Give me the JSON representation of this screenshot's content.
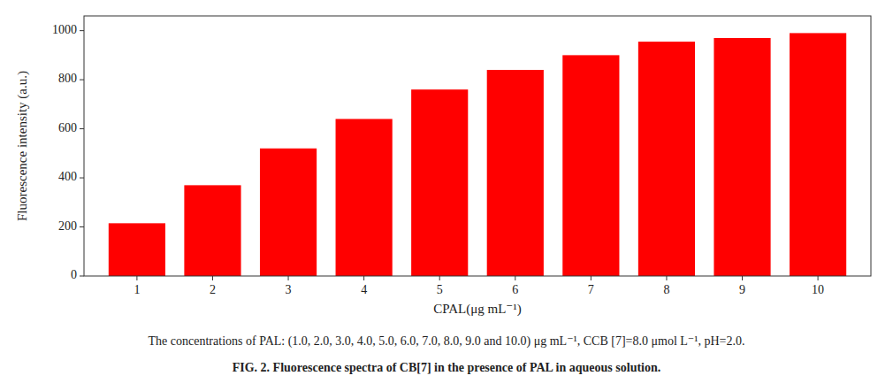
{
  "chart_data": {
    "type": "bar",
    "x": [
      1,
      2,
      3,
      4,
      5,
      6,
      7,
      8,
      9,
      10
    ],
    "values": [
      215,
      370,
      520,
      640,
      760,
      840,
      900,
      955,
      970,
      990
    ],
    "color": "#FF0000",
    "xlabel": "CPAL(μg mL⁻¹)",
    "ylabel": "Fluorescence intensity (a.u.)",
    "xlim": [
      0.3,
      10.7
    ],
    "xticks": [
      1,
      2,
      3,
      4,
      5,
      6,
      7,
      8,
      9,
      10
    ],
    "ylim": [
      0,
      1060
    ],
    "yticks": [
      0,
      200,
      400,
      600,
      800,
      1000
    ],
    "grid": false,
    "annotations": [
      "The concentrations of PAL: (1.0, 2.0, 3.0, 4.0, 5.0, 6.0, 7.0, 8.0, 9.0 and 10.0) μg mL⁻¹, CCB [7]=8.0 μmol L⁻¹, pH=2.0.",
      "FIG. 2. Fluorescence spectra of CB[7] in the presence of PAL in aqueous solution."
    ]
  }
}
